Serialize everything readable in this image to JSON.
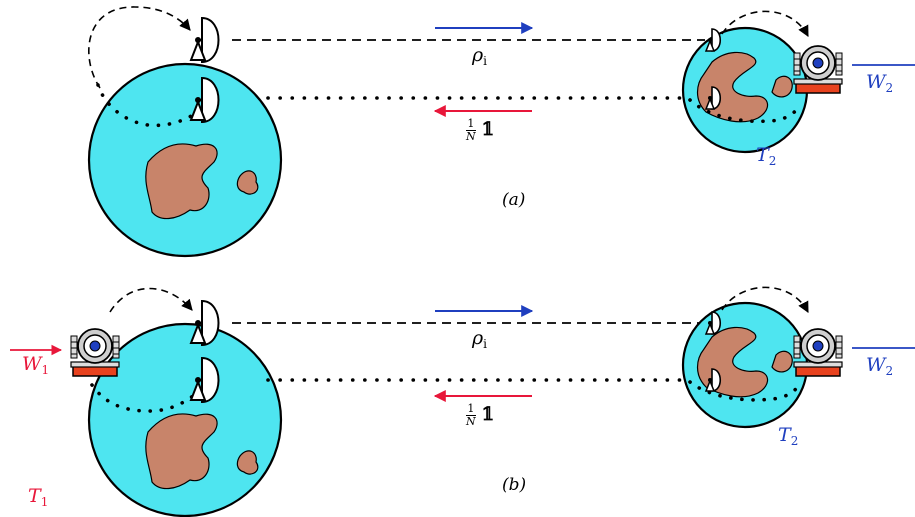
{
  "panels": [
    {
      "caption": "(a)",
      "forward_state": {
        "symbol": "ρ",
        "subscript": "i"
      },
      "return_state": {
        "fraction_num": "1",
        "fraction_den": "N",
        "operator": "𝟙"
      },
      "right_label": {
        "symbol": "T",
        "subscript": "2"
      },
      "right_work": {
        "symbol": "W",
        "subscript": "2"
      }
    },
    {
      "caption": "(b)",
      "forward_state": {
        "symbol": "ρ",
        "subscript": "i"
      },
      "return_state": {
        "fraction_num": "1",
        "fraction_den": "N",
        "operator": "𝟙"
      },
      "left_label": {
        "symbol": "T",
        "subscript": "1"
      },
      "left_work": {
        "symbol": "W",
        "subscript": "1"
      },
      "right_label": {
        "symbol": "T",
        "subscript": "2"
      },
      "right_work": {
        "symbol": "W",
        "subscript": "2"
      }
    }
  ],
  "colors": {
    "ocean": "#4ee5f0",
    "land": "#c8846a",
    "forward_arrow": "#1f3fbf",
    "return_arrow": "#e8173a",
    "left_text": "#e8173a",
    "right_text": "#1f3fbf",
    "engine_base": "#e8421e"
  },
  "icons": [
    "earth-globe-icon",
    "satellite-dish-icon",
    "heat-engine-icon"
  ]
}
